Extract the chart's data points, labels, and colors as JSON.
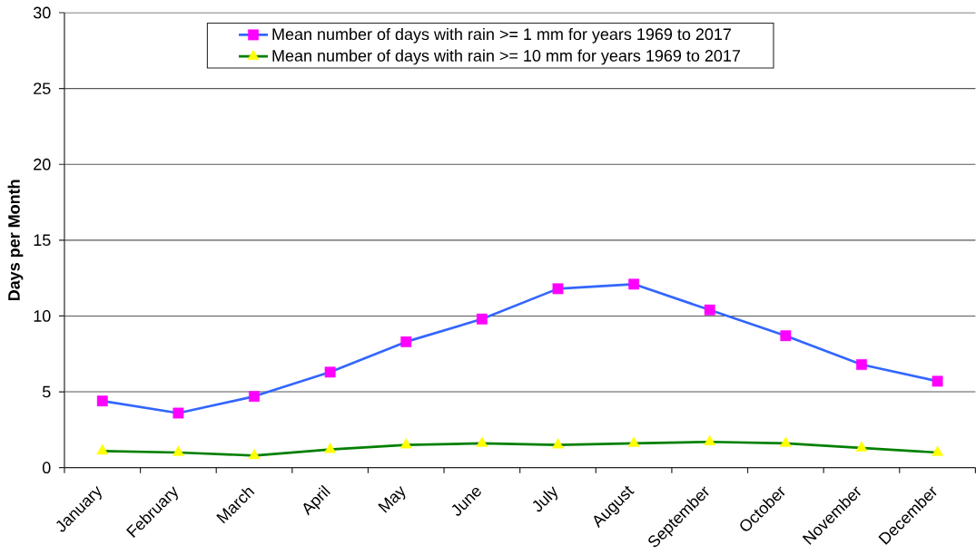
{
  "chart_data": {
    "type": "line",
    "ylabel": "Days per Month",
    "categories": [
      "January",
      "February",
      "March",
      "April",
      "May",
      "June",
      "July",
      "August",
      "September",
      "October",
      "November",
      "December"
    ],
    "series": [
      {
        "name": "Mean number of days with rain >= 1 mm for years 1969 to 2017",
        "color": "#3366ff",
        "colors": [
          "#ff00ff",
          "#ff00ff",
          "#ff00ff",
          "#ff00ff",
          "#ff00ff",
          "#ff00ff",
          "#ff00ff",
          "#ff00ff",
          "#ff00ff",
          "#ff00ff",
          "#ff00ff",
          "#ff00ff"
        ],
        "marker": "square",
        "values": [
          4.4,
          3.6,
          4.7,
          6.3,
          8.3,
          9.8,
          11.8,
          12.1,
          10.4,
          8.7,
          6.8,
          5.7
        ]
      },
      {
        "name": "Mean number of days with rain >= 10 mm for years 1969 to 2017",
        "color": "#008000",
        "colors": [
          "#ffff00",
          "#ffff00",
          "#ffff00",
          "#ffff00",
          "#ffff00",
          "#ffff00",
          "#ffff00",
          "#ffff00",
          "#ffff00",
          "#ffff00",
          "#ffff00",
          "#ffff00"
        ],
        "marker": "triangle",
        "values": [
          1.1,
          1.0,
          0.8,
          1.2,
          1.5,
          1.6,
          1.5,
          1.6,
          1.7,
          1.6,
          1.3,
          1.0
        ]
      }
    ],
    "ylim": [
      0,
      30
    ],
    "yticks": [
      0,
      5,
      10,
      15,
      20,
      25,
      30
    ],
    "grid": "y",
    "legend": "top",
    "line_style": "solid"
  }
}
